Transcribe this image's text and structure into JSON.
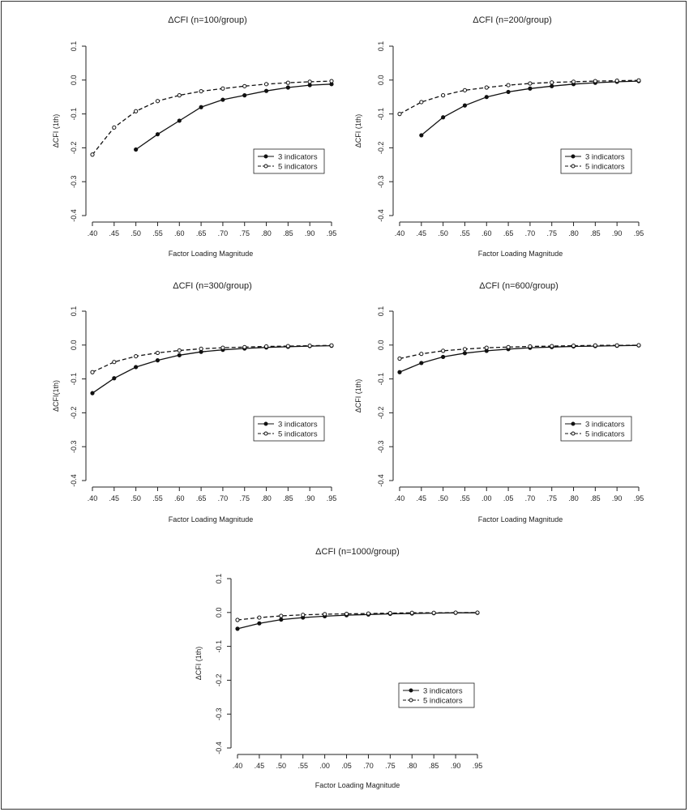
{
  "chart_data": [
    {
      "type": "line",
      "title": "ΔCFI (n=100/group)",
      "xlabel": "Factor Loading Magnitude",
      "ylabel": "ΔCFI (1th)",
      "x_tick_labels": [
        ".40",
        ".45",
        ".50",
        ".55",
        ".60",
        ".65",
        ".70",
        ".75",
        ".80",
        ".85",
        ".90",
        ".95"
      ],
      "y_tick_labels": [
        "0.1",
        "0.0",
        "-0.1",
        "-0.2",
        "-0.3",
        "-0.4"
      ],
      "ylim": [
        -0.4,
        0.1
      ],
      "legend": [
        "3 indicators",
        "5 indicators"
      ],
      "legend_position": "right",
      "series": [
        {
          "name": "3 indicators",
          "style": "solid",
          "marker": "filled-circle",
          "values": [
            null,
            null,
            -0.205,
            -0.16,
            -0.12,
            -0.08,
            -0.058,
            -0.045,
            -0.032,
            -0.022,
            -0.015,
            -0.012
          ]
        },
        {
          "name": "5 indicators",
          "style": "dashed",
          "marker": "open-circle",
          "values": [
            -0.22,
            -0.14,
            -0.092,
            -0.062,
            -0.045,
            -0.033,
            -0.025,
            -0.018,
            -0.012,
            -0.008,
            -0.005,
            -0.003
          ]
        }
      ]
    },
    {
      "type": "line",
      "title": "ΔCFI (n=200/group)",
      "xlabel": "Factor Loading Magnitude",
      "ylabel": "ΔCFI (1th)",
      "x_tick_labels": [
        ".40",
        ".45",
        ".50",
        ".55",
        ".60",
        ".65",
        ".70",
        ".75",
        ".80",
        ".85",
        ".90",
        ".95"
      ],
      "y_tick_labels": [
        "0.1",
        "0.0",
        "-0.1",
        "-0.2",
        "-0.3",
        "-0.4"
      ],
      "ylim": [
        -0.4,
        0.1
      ],
      "legend": [
        "3 indicators",
        "5 indicators"
      ],
      "legend_position": "right",
      "series": [
        {
          "name": "3 indicators",
          "style": "solid",
          "marker": "filled-circle",
          "values": [
            null,
            -0.163,
            -0.11,
            -0.075,
            -0.05,
            -0.035,
            -0.025,
            -0.018,
            -0.012,
            -0.008,
            -0.005,
            -0.003
          ]
        },
        {
          "name": "5 indicators",
          "style": "dashed",
          "marker": "open-circle",
          "values": [
            -0.1,
            -0.065,
            -0.045,
            -0.03,
            -0.022,
            -0.015,
            -0.01,
            -0.007,
            -0.005,
            -0.003,
            -0.002,
            -0.001
          ]
        }
      ]
    },
    {
      "type": "line",
      "title": "ΔCFI (n=300/group)",
      "xlabel": "Factor Loading Magnitude",
      "ylabel": "ΔCFI(1th)",
      "x_tick_labels": [
        ".40",
        ".45",
        ".50",
        ".55",
        ".60",
        ".65",
        ".70",
        ".75",
        ".80",
        ".85",
        ".90",
        ".95"
      ],
      "y_tick_labels": [
        "0.1",
        "0.0",
        "-0.1",
        "-0.2",
        "-0.3",
        "-0.4"
      ],
      "ylim": [
        -0.4,
        0.1
      ],
      "legend": [
        "3 indicators",
        "5 indicators"
      ],
      "legend_position": "right",
      "series": [
        {
          "name": "3 indicators",
          "style": "solid",
          "marker": "filled-circle",
          "values": [
            -0.142,
            -0.098,
            -0.065,
            -0.045,
            -0.03,
            -0.02,
            -0.014,
            -0.01,
            -0.007,
            -0.005,
            -0.003,
            -0.002
          ]
        },
        {
          "name": "5 indicators",
          "style": "dashed",
          "marker": "open-circle",
          "values": [
            -0.08,
            -0.05,
            -0.033,
            -0.023,
            -0.016,
            -0.011,
            -0.008,
            -0.006,
            -0.004,
            -0.003,
            -0.002,
            -0.001
          ]
        }
      ]
    },
    {
      "type": "line",
      "title": "ΔCFI (n=600/group)",
      "xlabel": "Factor Loading Magnitude",
      "ylabel": "ΔCFI (1th)",
      "x_tick_labels": [
        ".40",
        ".45",
        ".50",
        ".55",
        ".00",
        ".05",
        ".70",
        ".75",
        ".80",
        ".85",
        ".90",
        ".95"
      ],
      "y_tick_labels": [
        "0.1",
        "0.0",
        "-0.1",
        "-0.2",
        "-0.3",
        "-0.4"
      ],
      "ylim": [
        -0.4,
        0.1
      ],
      "legend": [
        "3 indicators",
        "5 indicators"
      ],
      "legend_position": "right",
      "series": [
        {
          "name": "3 indicators",
          "style": "solid",
          "marker": "filled-circle",
          "values": [
            -0.08,
            -0.053,
            -0.035,
            -0.024,
            -0.017,
            -0.012,
            -0.008,
            -0.006,
            -0.004,
            -0.003,
            -0.002,
            -0.001
          ]
        },
        {
          "name": "5 indicators",
          "style": "dashed",
          "marker": "open-circle",
          "values": [
            -0.04,
            -0.026,
            -0.017,
            -0.012,
            -0.008,
            -0.006,
            -0.004,
            -0.003,
            -0.002,
            -0.001,
            -0.001,
            -0.0005
          ]
        }
      ]
    },
    {
      "type": "line",
      "title": "ΔCFI (n=1000/group)",
      "xlabel": "Factor Loading Magnitude",
      "ylabel": "ΔCFI (1th)",
      "x_tick_labels": [
        ".40",
        ".45",
        ".50",
        ".55",
        ".00",
        ".05",
        ".70",
        ".75",
        ".80",
        ".85",
        ".90",
        ".95"
      ],
      "y_tick_labels": [
        "0.1",
        "0.0",
        "-0.1",
        "-0.2",
        "-0.3",
        "-0.4"
      ],
      "ylim": [
        -0.4,
        0.1
      ],
      "legend": [
        "3 indicators",
        "5 indicators"
      ],
      "legend_position": "right",
      "series": [
        {
          "name": "3 indicators",
          "style": "solid",
          "marker": "filled-circle",
          "values": [
            -0.048,
            -0.032,
            -0.021,
            -0.015,
            -0.011,
            -0.008,
            -0.006,
            -0.004,
            -0.003,
            -0.002,
            -0.001,
            -0.001
          ]
        },
        {
          "name": "5 indicators",
          "style": "dashed",
          "marker": "open-circle",
          "values": [
            -0.022,
            -0.015,
            -0.01,
            -0.007,
            -0.005,
            -0.004,
            -0.003,
            -0.002,
            -0.001,
            -0.001,
            -0.0005,
            -0.0003
          ]
        }
      ]
    }
  ]
}
